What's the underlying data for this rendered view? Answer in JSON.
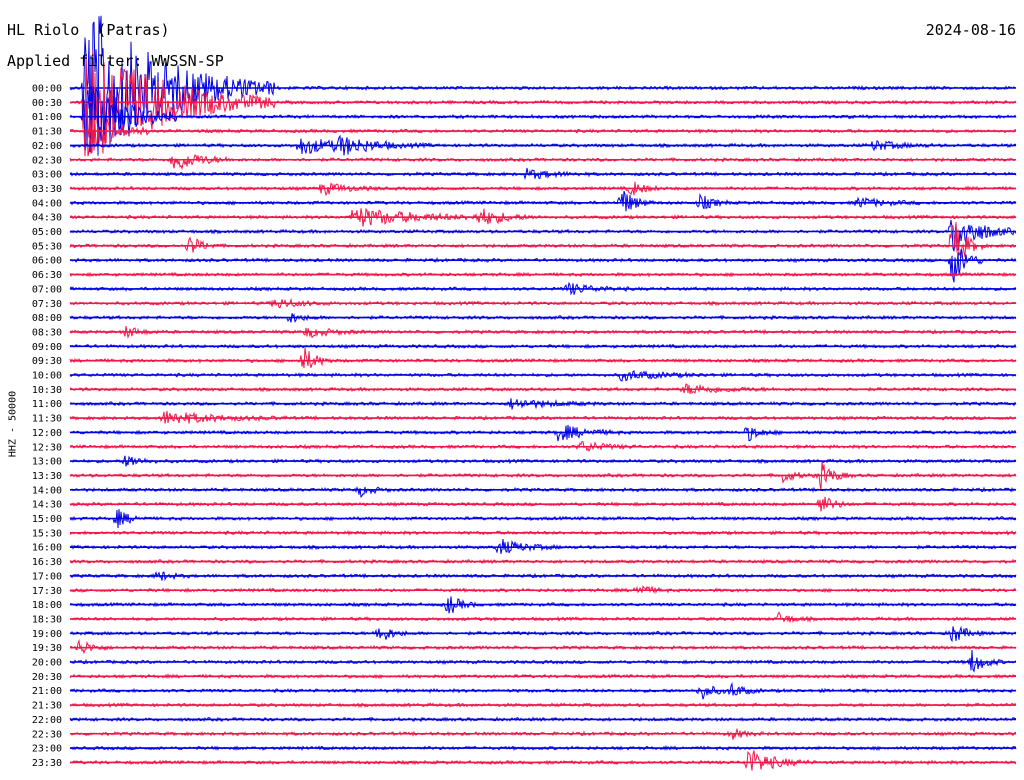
{
  "header": {
    "station": "HL Riolo  (Patras)",
    "date": "2024-08-16",
    "filter": "Applied filter: WWSSN-SP",
    "channel_label": "HHZ - 50000"
  },
  "colors": {
    "trace_even": "#0000e6",
    "trace_odd": "#f0164a",
    "text": "#000000",
    "background": "#ffffff"
  },
  "chart_data": {
    "type": "helicorder",
    "rows": [
      "00:00",
      "00:30",
      "01:00",
      "01:30",
      "02:00",
      "02:30",
      "03:00",
      "03:30",
      "04:00",
      "04:30",
      "05:00",
      "05:30",
      "06:00",
      "06:30",
      "07:00",
      "07:30",
      "08:00",
      "08:30",
      "09:00",
      "09:30",
      "10:00",
      "10:30",
      "11:00",
      "11:30",
      "12:00",
      "12:30",
      "13:00",
      "13:30",
      "14:00",
      "14:30",
      "15:00",
      "15:30",
      "16:00",
      "16:30",
      "17:00",
      "17:30",
      "18:00",
      "18:30",
      "19:00",
      "19:30",
      "20:00",
      "20:30",
      "21:00",
      "21:30",
      "22:00",
      "22:30",
      "23:00",
      "23:30"
    ],
    "row_minutes": 30,
    "events": [
      {
        "row": 0,
        "minute": 0.5,
        "amp": 90,
        "dur": 6
      },
      {
        "row": 1,
        "minute": 0.5,
        "amp": 70,
        "dur": 6
      },
      {
        "row": 2,
        "minute": 0.5,
        "amp": 45,
        "dur": 3
      },
      {
        "row": 3,
        "minute": 0.5,
        "amp": 30,
        "dur": 2
      },
      {
        "row": 4,
        "minute": 7.3,
        "amp": 9,
        "dur": 3
      },
      {
        "row": 4,
        "minute": 8.5,
        "amp": 8,
        "dur": 3
      },
      {
        "row": 4,
        "minute": 25.5,
        "amp": 5,
        "dur": 2
      },
      {
        "row": 5,
        "minute": 3.3,
        "amp": 12,
        "dur": 2
      },
      {
        "row": 6,
        "minute": 14.5,
        "amp": 5,
        "dur": 2
      },
      {
        "row": 7,
        "minute": 8.0,
        "amp": 6,
        "dur": 2
      },
      {
        "row": 7,
        "minute": 17.8,
        "amp": 8,
        "dur": 1
      },
      {
        "row": 8,
        "minute": 17.5,
        "amp": 15,
        "dur": 1
      },
      {
        "row": 8,
        "minute": 20.0,
        "amp": 8,
        "dur": 1
      },
      {
        "row": 8,
        "minute": 25.0,
        "amp": 5,
        "dur": 2
      },
      {
        "row": 9,
        "minute": 9.0,
        "amp": 10,
        "dur": 5
      },
      {
        "row": 9,
        "minute": 13.0,
        "amp": 8,
        "dur": 2
      },
      {
        "row": 10,
        "minute": 28.0,
        "amp": 25,
        "dur": 2
      },
      {
        "row": 11,
        "minute": 28.0,
        "amp": 30,
        "dur": 1
      },
      {
        "row": 11,
        "minute": 3.8,
        "amp": 10,
        "dur": 1
      },
      {
        "row": 12,
        "minute": 28.0,
        "amp": 25,
        "dur": 1
      },
      {
        "row": 14,
        "minute": 15.8,
        "amp": 6,
        "dur": 2
      },
      {
        "row": 15,
        "minute": 6.5,
        "amp": 5,
        "dur": 2
      },
      {
        "row": 16,
        "minute": 7.0,
        "amp": 5,
        "dur": 1
      },
      {
        "row": 17,
        "minute": 1.8,
        "amp": 6,
        "dur": 1
      },
      {
        "row": 17,
        "minute": 7.5,
        "amp": 5,
        "dur": 2
      },
      {
        "row": 19,
        "minute": 7.4,
        "amp": 14,
        "dur": 1
      },
      {
        "row": 20,
        "minute": 17.5,
        "amp": 5,
        "dur": 3
      },
      {
        "row": 21,
        "minute": 19.5,
        "amp": 5,
        "dur": 3
      },
      {
        "row": 22,
        "minute": 14.0,
        "amp": 5,
        "dur": 3
      },
      {
        "row": 23,
        "minute": 3.0,
        "amp": 7,
        "dur": 4
      },
      {
        "row": 24,
        "minute": 15.5,
        "amp": 9,
        "dur": 2
      },
      {
        "row": 24,
        "minute": 21.5,
        "amp": 8,
        "dur": 1
      },
      {
        "row": 25,
        "minute": 16.2,
        "amp": 5,
        "dur": 2
      },
      {
        "row": 26,
        "minute": 1.8,
        "amp": 7,
        "dur": 1
      },
      {
        "row": 27,
        "minute": 22.6,
        "amp": 7,
        "dur": 1
      },
      {
        "row": 27,
        "minute": 23.8,
        "amp": 14,
        "dur": 1
      },
      {
        "row": 28,
        "minute": 9.2,
        "amp": 6,
        "dur": 1
      },
      {
        "row": 29,
        "minute": 23.8,
        "amp": 10,
        "dur": 1
      },
      {
        "row": 30,
        "minute": 1.5,
        "amp": 9,
        "dur": 1
      },
      {
        "row": 32,
        "minute": 13.6,
        "amp": 8,
        "dur": 2
      },
      {
        "row": 34,
        "minute": 2.8,
        "amp": 5,
        "dur": 1
      },
      {
        "row": 35,
        "minute": 18.0,
        "amp": 6,
        "dur": 1
      },
      {
        "row": 36,
        "minute": 12.0,
        "amp": 10,
        "dur": 1
      },
      {
        "row": 37,
        "minute": 22.5,
        "amp": 6,
        "dur": 1
      },
      {
        "row": 38,
        "minute": 9.8,
        "amp": 10,
        "dur": 1
      },
      {
        "row": 38,
        "minute": 28.0,
        "amp": 10,
        "dur": 1
      },
      {
        "row": 39,
        "minute": 0.3,
        "amp": 8,
        "dur": 1
      },
      {
        "row": 40,
        "minute": 28.6,
        "amp": 12,
        "dur": 1
      },
      {
        "row": 42,
        "minute": 20.0,
        "amp": 9,
        "dur": 1
      },
      {
        "row": 42,
        "minute": 21.0,
        "amp": 7,
        "dur": 1
      },
      {
        "row": 45,
        "minute": 21.0,
        "amp": 5,
        "dur": 1
      },
      {
        "row": 47,
        "minute": 21.5,
        "amp": 14,
        "dur": 2
      }
    ]
  }
}
